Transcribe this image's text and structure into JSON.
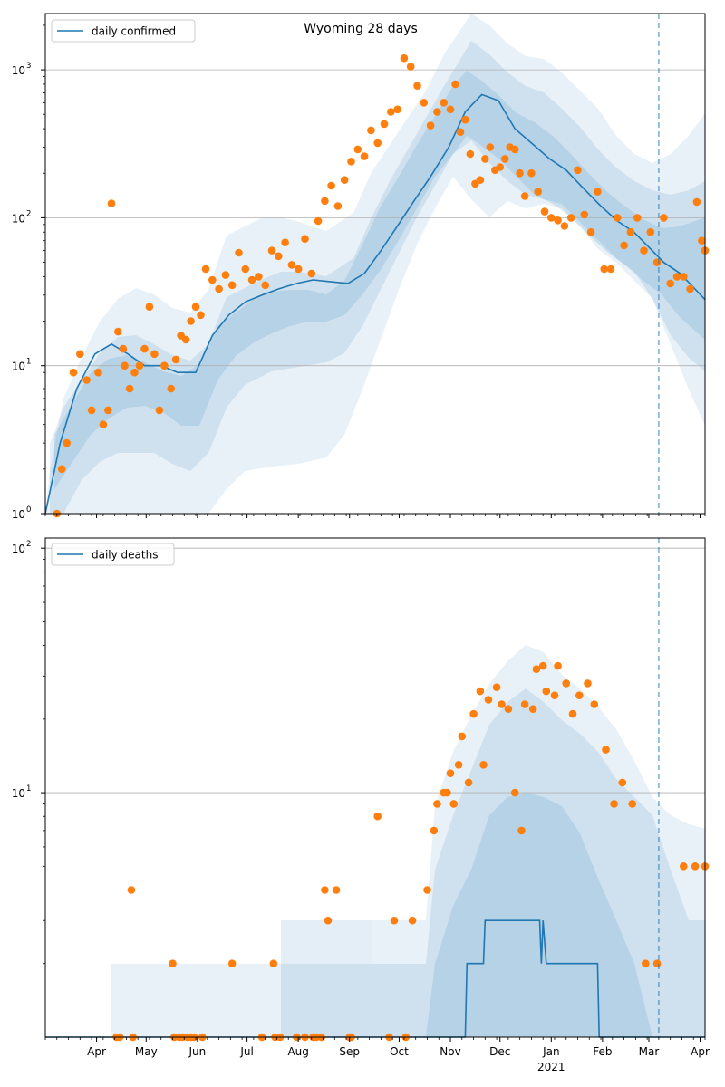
{
  "chart_data": [
    {
      "type": "line",
      "title": "Wyoming 28 days",
      "yscale": "log",
      "ylim": [
        1,
        2400
      ],
      "xlim": [
        "2020-03-01",
        "2021-04-04"
      ],
      "grid": "y-major",
      "legend": {
        "placement": "top-left",
        "entries": [
          "daily confirmed"
        ]
      },
      "yticks": [
        {
          "value": 1,
          "base": "10",
          "exp": "0"
        },
        {
          "value": 10,
          "base": "10",
          "exp": "1"
        },
        {
          "value": 100,
          "base": "10",
          "exp": "2"
        },
        {
          "value": 1000,
          "base": "10",
          "exp": "3"
        }
      ],
      "forecast_start": "2021-03-07",
      "series": [
        {
          "name": "daily confirmed",
          "role": "model-median",
          "x": [
            "2020-03-01",
            "2020-03-10",
            "2020-03-20",
            "2020-03-31",
            "2020-04-10",
            "2020-04-20",
            "2020-04-30",
            "2020-05-10",
            "2020-05-20",
            "2020-05-31",
            "2020-06-10",
            "2020-06-20",
            "2020-06-30",
            "2020-07-10",
            "2020-07-20",
            "2020-07-31",
            "2020-08-10",
            "2020-08-20",
            "2020-08-31",
            "2020-09-10",
            "2020-09-20",
            "2020-09-30",
            "2020-10-10",
            "2020-10-20",
            "2020-10-31",
            "2020-11-10",
            "2020-11-20",
            "2020-11-30",
            "2020-12-10",
            "2020-12-20",
            "2020-12-31",
            "2021-01-10",
            "2021-01-20",
            "2021-01-31",
            "2021-02-10",
            "2021-02-20",
            "2021-02-28",
            "2021-03-10",
            "2021-03-20",
            "2021-04-04"
          ],
          "y": [
            1,
            3,
            7,
            12,
            14,
            12,
            10,
            10,
            9,
            9,
            16,
            22,
            27,
            30,
            33,
            36,
            38,
            37,
            36,
            42,
            60,
            88,
            130,
            190,
            300,
            520,
            680,
            620,
            400,
            320,
            250,
            210,
            160,
            120,
            95,
            80,
            65,
            50,
            42,
            28
          ]
        },
        {
          "name": "observed",
          "role": "observed",
          "x": [
            "2020-03-08",
            "2020-03-11",
            "2020-03-14",
            "2020-03-18",
            "2020-03-22",
            "2020-03-26",
            "2020-03-29",
            "2020-04-02",
            "2020-04-05",
            "2020-04-08",
            "2020-04-10",
            "2020-04-14",
            "2020-04-17",
            "2020-04-18",
            "2020-04-21",
            "2020-04-24",
            "2020-04-27",
            "2020-04-30",
            "2020-05-03",
            "2020-05-06",
            "2020-05-09",
            "2020-05-12",
            "2020-05-16",
            "2020-05-19",
            "2020-05-22",
            "2020-05-25",
            "2020-05-28",
            "2020-05-31",
            "2020-06-03",
            "2020-06-06",
            "2020-06-10",
            "2020-06-14",
            "2020-06-18",
            "2020-06-22",
            "2020-06-26",
            "2020-06-30",
            "2020-07-04",
            "2020-07-08",
            "2020-07-12",
            "2020-07-16",
            "2020-07-20",
            "2020-07-24",
            "2020-07-28",
            "2020-08-01",
            "2020-08-05",
            "2020-08-09",
            "2020-08-13",
            "2020-08-17",
            "2020-08-21",
            "2020-08-25",
            "2020-08-29",
            "2020-09-02",
            "2020-09-06",
            "2020-09-10",
            "2020-09-14",
            "2020-09-18",
            "2020-09-22",
            "2020-09-26",
            "2020-09-30",
            "2020-10-04",
            "2020-10-08",
            "2020-10-12",
            "2020-10-16",
            "2020-10-20",
            "2020-10-24",
            "2020-10-28",
            "2020-11-01",
            "2020-11-04",
            "2020-11-07",
            "2020-11-10",
            "2020-11-13",
            "2020-11-16",
            "2020-11-19",
            "2020-11-22",
            "2020-11-25",
            "2020-11-28",
            "2020-12-01",
            "2020-12-04",
            "2020-12-07",
            "2020-12-10",
            "2020-12-13",
            "2020-12-16",
            "2020-12-20",
            "2020-12-24",
            "2020-12-28",
            "2021-01-01",
            "2021-01-05",
            "2021-01-09",
            "2021-01-13",
            "2021-01-17",
            "2021-01-21",
            "2021-01-25",
            "2021-01-29",
            "2021-02-02",
            "2021-02-06",
            "2021-02-10",
            "2021-02-14",
            "2021-02-18",
            "2021-02-22",
            "2021-02-26",
            "2021-03-02",
            "2021-03-06",
            "2021-03-10",
            "2021-03-14",
            "2021-03-18",
            "2021-03-22",
            "2021-03-26",
            "2021-03-30",
            "2021-04-02",
            "2021-04-04"
          ],
          "y": [
            1,
            2,
            3,
            9,
            12,
            8,
            5,
            9,
            4,
            5,
            125,
            17,
            13,
            10,
            7,
            9,
            10,
            13,
            25,
            12,
            5,
            10,
            7,
            11,
            16,
            15,
            20,
            25,
            22,
            45,
            38,
            33,
            41,
            35,
            58,
            45,
            38,
            40,
            35,
            60,
            55,
            68,
            48,
            45,
            72,
            42,
            95,
            130,
            165,
            120,
            180,
            240,
            290,
            260,
            390,
            320,
            430,
            520,
            540,
            1200,
            1050,
            780,
            600,
            420,
            520,
            600,
            540,
            800,
            380,
            460,
            270,
            170,
            180,
            250,
            300,
            210,
            220,
            250,
            300,
            290,
            200,
            140,
            200,
            150,
            110,
            100,
            96,
            88,
            100,
            210,
            105,
            80,
            150,
            45,
            45,
            100,
            65,
            80,
            100,
            60,
            80,
            50,
            100,
            36,
            40,
            40,
            33,
            128,
            70,
            60
          ]
        }
      ]
    },
    {
      "type": "line",
      "yscale": "log",
      "ylim": [
        1,
        110
      ],
      "xlim": [
        "2020-03-01",
        "2021-04-04"
      ],
      "grid": "y-major",
      "legend": {
        "placement": "top-left",
        "entries": [
          "daily deaths"
        ]
      },
      "yticks": [
        {
          "value": 10,
          "base": "10",
          "exp": "1"
        },
        {
          "value": 100,
          "base": "10",
          "exp": "2"
        }
      ],
      "forecast_start": "2021-03-07",
      "xticks": [
        {
          "date": "2020-04-01",
          "label": "Apr"
        },
        {
          "date": "2020-05-01",
          "label": "May"
        },
        {
          "date": "2020-06-01",
          "label": "Jun"
        },
        {
          "date": "2020-07-01",
          "label": "Jul"
        },
        {
          "date": "2020-08-01",
          "label": "Aug"
        },
        {
          "date": "2020-09-01",
          "label": "Sep"
        },
        {
          "date": "2020-10-01",
          "label": "Oct"
        },
        {
          "date": "2020-11-01",
          "label": "Nov"
        },
        {
          "date": "2020-12-01",
          "label": "Dec"
        },
        {
          "date": "2021-01-01",
          "label": "Jan",
          "sublabel": "2021"
        },
        {
          "date": "2021-02-01",
          "label": "Feb"
        },
        {
          "date": "2021-03-01",
          "label": "Mar"
        },
        {
          "date": "2021-04-01",
          "label": "Apr"
        }
      ],
      "series": [
        {
          "name": "daily deaths",
          "role": "model-median",
          "x": [
            "2020-03-01",
            "2020-11-10",
            "2020-11-11",
            "2020-11-21",
            "2020-11-22",
            "2020-12-25",
            "2020-12-26",
            "2020-12-27",
            "2020-12-29",
            "2021-01-29",
            "2021-01-30",
            "2021-04-04"
          ],
          "y": [
            1,
            1,
            2,
            2,
            3,
            3,
            2,
            3,
            2,
            2,
            1,
            1
          ]
        },
        {
          "name": "observed",
          "role": "observed",
          "x": [
            "2020-04-13",
            "2020-04-15",
            "2020-04-22",
            "2020-04-23",
            "2020-05-17",
            "2020-05-18",
            "2020-05-21",
            "2020-05-23",
            "2020-05-26",
            "2020-05-28",
            "2020-05-30",
            "2020-06-04",
            "2020-06-22",
            "2020-07-10",
            "2020-07-17",
            "2020-07-18",
            "2020-07-21",
            "2020-07-31",
            "2020-08-05",
            "2020-08-10",
            "2020-08-12",
            "2020-08-15",
            "2020-08-17",
            "2020-08-19",
            "2020-08-24",
            "2020-09-01",
            "2020-09-02",
            "2020-09-18",
            "2020-09-25",
            "2020-09-28",
            "2020-10-05",
            "2020-10-09",
            "2020-10-18",
            "2020-10-22",
            "2020-10-24",
            "2020-10-28",
            "2020-10-30",
            "2020-11-01",
            "2020-11-03",
            "2020-11-06",
            "2020-11-08",
            "2020-11-12",
            "2020-11-15",
            "2020-11-19",
            "2020-11-21",
            "2020-11-24",
            "2020-11-29",
            "2020-12-02",
            "2020-12-06",
            "2020-12-10",
            "2020-12-14",
            "2020-12-16",
            "2020-12-21",
            "2020-12-23",
            "2020-12-27",
            "2020-12-29",
            "2021-01-03",
            "2021-01-05",
            "2021-01-10",
            "2021-01-14",
            "2021-01-18",
            "2021-01-23",
            "2021-01-27",
            "2021-02-03",
            "2021-02-08",
            "2021-02-13",
            "2021-02-19",
            "2021-02-27",
            "2021-03-06",
            "2021-03-22",
            "2021-03-29",
            "2021-04-04"
          ],
          "y": [
            1,
            1,
            4,
            1,
            2,
            1,
            1,
            1,
            1,
            1,
            1,
            1,
            2,
            1,
            2,
            1,
            1,
            1,
            1,
            1,
            1,
            1,
            4,
            3,
            4,
            1,
            1,
            8,
            1,
            3,
            1,
            3,
            4,
            7,
            9,
            10,
            10,
            12,
            9,
            13,
            17,
            11,
            21,
            26,
            13,
            24,
            27,
            23,
            22,
            10,
            7,
            23,
            22,
            32,
            33,
            26,
            25,
            33,
            28,
            21,
            25,
            28,
            23,
            15,
            9,
            11,
            9,
            2,
            2,
            5,
            5,
            5
          ]
        }
      ]
    }
  ]
}
